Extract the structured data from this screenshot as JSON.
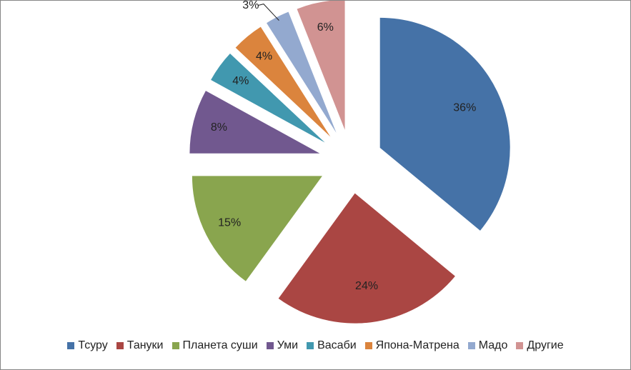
{
  "chart_data": {
    "type": "pie",
    "categories": [
      "Тсуру",
      "Тануки",
      "Планета суши",
      "Уми",
      "Васаби",
      "Япона-Матрена",
      "Мадо",
      "Другие"
    ],
    "values": [
      36,
      24,
      15,
      8,
      4,
      4,
      3,
      6
    ],
    "value_labels": [
      "36%",
      "24%",
      "15%",
      "8%",
      "4%",
      "4%",
      "3%",
      "6%"
    ],
    "colors": [
      "#4572a7",
      "#aa4643",
      "#89a54e",
      "#71588f",
      "#4198af",
      "#db843d",
      "#93a9cf",
      "#d19392"
    ],
    "legend": "bottom"
  }
}
